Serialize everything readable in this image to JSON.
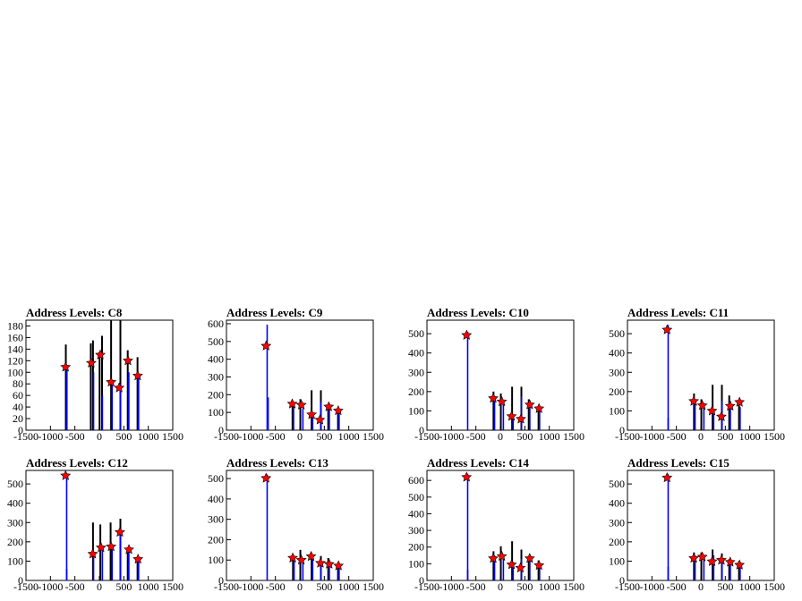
{
  "colors": {
    "black_hist": "#000000",
    "blue_hist": "#0000ff",
    "marker": "#ff0000",
    "frame": "#000000"
  },
  "chart_data": [
    {
      "type": "bar",
      "title": "Address Levels: C8",
      "xlim": [
        -1500,
        1500
      ],
      "ylim": [
        0,
        190
      ],
      "x_ticks": [
        -1500,
        -1000,
        -500,
        0,
        500,
        1000,
        1500
      ],
      "y_ticks": [
        0,
        20,
        40,
        60,
        80,
        100,
        120,
        140,
        160,
        180
      ],
      "black_peaks": [
        [
          -685,
          148
        ],
        [
          -175,
          150
        ],
        [
          -130,
          155
        ],
        [
          5,
          135
        ],
        [
          55,
          163
        ],
        [
          240,
          190
        ],
        [
          430,
          190
        ],
        [
          580,
          138
        ],
        [
          780,
          126
        ]
      ],
      "blue_peaks": [
        [
          -685,
          110
        ],
        [
          -140,
          100
        ],
        [
          40,
          60
        ],
        [
          240,
          80
        ],
        [
          410,
          80
        ],
        [
          580,
          100
        ],
        [
          780,
          90
        ]
      ],
      "markers": [
        [
          -690,
          109
        ],
        [
          -165,
          116
        ],
        [
          20,
          130
        ],
        [
          240,
          83
        ],
        [
          405,
          73
        ],
        [
          585,
          120
        ],
        [
          785,
          94
        ]
      ]
    },
    {
      "type": "bar",
      "title": "Address Levels: C9",
      "xlim": [
        -1500,
        1500
      ],
      "ylim": [
        0,
        620
      ],
      "x_ticks": [
        -1500,
        -1000,
        -500,
        0,
        500,
        1000,
        1500
      ],
      "y_ticks": [
        0,
        100,
        200,
        300,
        400,
        500,
        600
      ],
      "black_peaks": [
        [
          -150,
          155
        ],
        [
          10,
          175
        ],
        [
          240,
          225
        ],
        [
          430,
          225
        ],
        [
          580,
          135
        ],
        [
          780,
          120
        ]
      ],
      "blue_peaks": [
        [
          -690,
          595
        ],
        [
          -670,
          185
        ],
        [
          -150,
          135
        ],
        [
          40,
          120
        ],
        [
          240,
          90
        ],
        [
          410,
          160
        ],
        [
          580,
          125
        ],
        [
          780,
          110
        ]
      ],
      "markers": [
        [
          -690,
          475
        ],
        [
          -155,
          148
        ],
        [
          30,
          142
        ],
        [
          240,
          88
        ],
        [
          410,
          58
        ],
        [
          590,
          132
        ],
        [
          785,
          110
        ]
      ]
    },
    {
      "type": "bar",
      "title": "Address Levels: C10",
      "xlim": [
        -1500,
        1500
      ],
      "ylim": [
        0,
        570
      ],
      "x_ticks": [
        -1500,
        -1000,
        -500,
        0,
        500,
        1000,
        1500
      ],
      "y_ticks": [
        0,
        100,
        200,
        300,
        400,
        500
      ],
      "black_peaks": [
        [
          -140,
          200
        ],
        [
          10,
          190
        ],
        [
          240,
          225
        ],
        [
          430,
          225
        ],
        [
          580,
          160
        ],
        [
          780,
          120
        ]
      ],
      "blue_peaks": [
        [
          -690,
          510
        ],
        [
          -140,
          175
        ],
        [
          40,
          150
        ],
        [
          240,
          80
        ],
        [
          410,
          175
        ],
        [
          580,
          150
        ],
        [
          780,
          110
        ]
      ],
      "markers": [
        [
          -690,
          492
        ],
        [
          -145,
          165
        ],
        [
          30,
          148
        ],
        [
          230,
          72
        ],
        [
          420,
          58
        ],
        [
          600,
          132
        ],
        [
          790,
          112
        ]
      ]
    },
    {
      "type": "bar",
      "title": "Address Levels: C11",
      "xlim": [
        -1500,
        1500
      ],
      "ylim": [
        0,
        570
      ],
      "x_ticks": [
        -1500,
        -1000,
        -500,
        0,
        500,
        1000,
        1500
      ],
      "y_ticks": [
        0,
        100,
        200,
        300,
        400,
        500
      ],
      "black_peaks": [
        [
          -140,
          190
        ],
        [
          10,
          160
        ],
        [
          240,
          235
        ],
        [
          430,
          235
        ],
        [
          580,
          180
        ],
        [
          780,
          140
        ]
      ],
      "blue_peaks": [
        [
          -690,
          545
        ],
        [
          -690,
          65
        ],
        [
          -140,
          160
        ],
        [
          40,
          140
        ],
        [
          240,
          100
        ],
        [
          410,
          150
        ],
        [
          580,
          150
        ],
        [
          780,
          120
        ]
      ],
      "markers": [
        [
          -690,
          520
        ],
        [
          -145,
          150
        ],
        [
          30,
          128
        ],
        [
          230,
          100
        ],
        [
          420,
          70
        ],
        [
          600,
          125
        ],
        [
          790,
          145
        ]
      ]
    },
    {
      "type": "bar",
      "title": "Address Levels: C12",
      "xlim": [
        -1500,
        1500
      ],
      "ylim": [
        0,
        570
      ],
      "x_ticks": [
        -1500,
        -1000,
        -500,
        0,
        500,
        1000,
        1500
      ],
      "y_ticks": [
        0,
        100,
        200,
        300,
        400,
        500
      ],
      "black_peaks": [
        [
          -130,
          300
        ],
        [
          20,
          290
        ],
        [
          230,
          300
        ],
        [
          430,
          320
        ],
        [
          580,
          160
        ],
        [
          780,
          120
        ]
      ],
      "blue_peaks": [
        [
          -690,
          555
        ],
        [
          -690,
          60
        ],
        [
          -140,
          150
        ],
        [
          40,
          170
        ],
        [
          240,
          175
        ],
        [
          410,
          240
        ],
        [
          580,
          160
        ],
        [
          780,
          110
        ]
      ],
      "markers": [
        [
          -690,
          543
        ],
        [
          -135,
          137
        ],
        [
          35,
          170
        ],
        [
          240,
          175
        ],
        [
          420,
          250
        ],
        [
          605,
          160
        ],
        [
          790,
          110
        ]
      ]
    },
    {
      "type": "bar",
      "title": "Address Levels: C13",
      "xlim": [
        -1500,
        1500
      ],
      "ylim": [
        0,
        540
      ],
      "x_ticks": [
        -1500,
        -1000,
        -500,
        0,
        500,
        1000,
        1500
      ],
      "y_ticks": [
        0,
        100,
        200,
        300,
        400,
        500
      ],
      "black_peaks": [
        [
          -140,
          120
        ],
        [
          10,
          150
        ],
        [
          240,
          135
        ],
        [
          430,
          120
        ],
        [
          580,
          110
        ],
        [
          780,
          85
        ]
      ],
      "blue_peaks": [
        [
          -690,
          520
        ],
        [
          -140,
          110
        ],
        [
          40,
          100
        ],
        [
          240,
          125
        ],
        [
          410,
          100
        ],
        [
          580,
          90
        ],
        [
          780,
          75
        ]
      ],
      "markers": [
        [
          -690,
          502
        ],
        [
          -145,
          110
        ],
        [
          30,
          100
        ],
        [
          230,
          118
        ],
        [
          420,
          85
        ],
        [
          600,
          80
        ],
        [
          790,
          72
        ]
      ]
    },
    {
      "type": "bar",
      "title": "Address Levels: C14",
      "xlim": [
        -1500,
        1500
      ],
      "ylim": [
        0,
        660
      ],
      "x_ticks": [
        -1500,
        -1000,
        -500,
        0,
        500,
        1000,
        1500
      ],
      "y_ticks": [
        0,
        100,
        200,
        300,
        400,
        500,
        600
      ],
      "black_peaks": [
        [
          -140,
          175
        ],
        [
          10,
          205
        ],
        [
          240,
          235
        ],
        [
          430,
          185
        ],
        [
          580,
          145
        ],
        [
          780,
          120
        ]
      ],
      "blue_peaks": [
        [
          -690,
          640
        ],
        [
          -690,
          65
        ],
        [
          -140,
          150
        ],
        [
          40,
          150
        ],
        [
          240,
          110
        ],
        [
          410,
          130
        ],
        [
          580,
          140
        ],
        [
          780,
          100
        ]
      ],
      "markers": [
        [
          -690,
          620
        ],
        [
          -145,
          132
        ],
        [
          30,
          145
        ],
        [
          230,
          95
        ],
        [
          410,
          75
        ],
        [
          600,
          132
        ],
        [
          790,
          90
        ]
      ]
    },
    {
      "type": "bar",
      "title": "Address Levels: C15",
      "xlim": [
        -1500,
        1500
      ],
      "ylim": [
        0,
        570
      ],
      "x_ticks": [
        -1500,
        -1000,
        -500,
        0,
        500,
        1000,
        1500
      ],
      "y_ticks": [
        0,
        100,
        200,
        300,
        400,
        500
      ],
      "black_peaks": [
        [
          -140,
          145
        ],
        [
          10,
          145
        ],
        [
          240,
          160
        ],
        [
          430,
          140
        ],
        [
          580,
          110
        ],
        [
          780,
          100
        ]
      ],
      "blue_peaks": [
        [
          -690,
          550
        ],
        [
          -690,
          70
        ],
        [
          -140,
          130
        ],
        [
          40,
          120
        ],
        [
          240,
          130
        ],
        [
          410,
          110
        ],
        [
          580,
          100
        ],
        [
          780,
          90
        ]
      ],
      "markers": [
        [
          -690,
          532
        ],
        [
          -145,
          115
        ],
        [
          30,
          122
        ],
        [
          230,
          98
        ],
        [
          420,
          105
        ],
        [
          600,
          95
        ],
        [
          790,
          80
        ]
      ]
    }
  ]
}
